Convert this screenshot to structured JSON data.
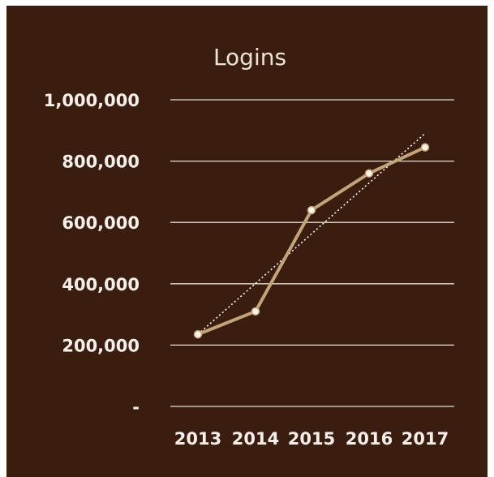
{
  "chart_data": {
    "type": "line",
    "title": "Logins",
    "categories": [
      "2013",
      "2014",
      "2015",
      "2016",
      "2017"
    ],
    "series": [
      {
        "values": [
          235000,
          310000,
          640000,
          760000,
          845000
        ]
      }
    ],
    "trendline": {
      "style": "dotted",
      "start": 235000,
      "end": 890000
    },
    "ylim": [
      0,
      1000000
    ],
    "yticks": [
      0,
      200000,
      400000,
      600000,
      800000,
      1000000
    ],
    "ytick_labels": [
      "-",
      "200,000",
      "400,000",
      "600,000",
      "800,000",
      "1,000,000"
    ],
    "grid": true,
    "legend": "none",
    "colors": {
      "background": "#3a1d0f",
      "line": "#c2a577",
      "marker": "#fbf5ea",
      "gridline": "#e8dfd3",
      "trendline": "#ffffff",
      "text": "#f4efe8"
    }
  }
}
